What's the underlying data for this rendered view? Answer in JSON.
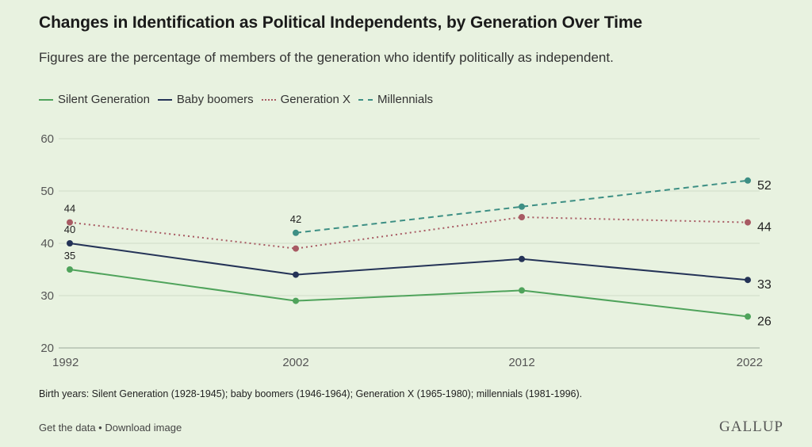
{
  "title": "Changes in Identification as Political Independents, by Generation Over Time",
  "subtitle": "Figures are the percentage of members of the generation who identify politically as independent.",
  "legend": [
    {
      "label": "Silent Generation",
      "color": "#4fa35b",
      "style": "solid"
    },
    {
      "label": "Baby boomers",
      "color": "#243357",
      "style": "solid"
    },
    {
      "label": "Generation X",
      "color": "#a85a63",
      "style": "dotted"
    },
    {
      "label": "Millennials",
      "color": "#3d8f84",
      "style": "dashed"
    }
  ],
  "footnote": "Birth years: Silent Generation (1928-1945); baby boomers (1946-1964); Generation X (1965-1980); millennials (1981-1996).",
  "footer": {
    "get_data": "Get the data",
    "separator": " • ",
    "download": "Download image",
    "logo": "GALLUP"
  },
  "chart_data": {
    "type": "line",
    "x": [
      "1992",
      "2002",
      "2012",
      "2022"
    ],
    "ylim": [
      20,
      60
    ],
    "yticks": [
      20,
      30,
      40,
      50,
      60
    ],
    "grid": true,
    "legend_position": "top-left",
    "series": [
      {
        "name": "Silent Generation",
        "color": "#4fa35b",
        "style": "solid",
        "values": [
          35,
          29,
          31,
          26
        ],
        "labels": [
          "35",
          null,
          null,
          "26"
        ]
      },
      {
        "name": "Baby boomers",
        "color": "#243357",
        "style": "solid",
        "values": [
          40,
          34,
          37,
          33
        ],
        "labels": [
          "40",
          null,
          null,
          "33"
        ]
      },
      {
        "name": "Generation X",
        "color": "#a85a63",
        "style": "dotted",
        "values": [
          44,
          39,
          45,
          44
        ],
        "labels": [
          "44",
          null,
          null,
          "44"
        ]
      },
      {
        "name": "Millennials",
        "color": "#3d8f84",
        "style": "dashed",
        "values": [
          null,
          42,
          47,
          52
        ],
        "labels": [
          null,
          "42",
          null,
          "52"
        ]
      }
    ]
  }
}
